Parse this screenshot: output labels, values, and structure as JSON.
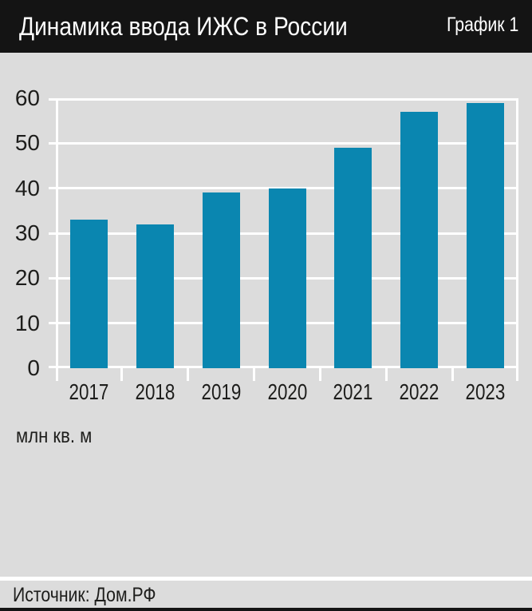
{
  "header": {
    "title": "Динамика ввода ИЖС в России",
    "chart_label": "График 1"
  },
  "chart_data": {
    "type": "bar",
    "title": "Динамика ввода ИЖС в России",
    "categories": [
      "2017",
      "2018",
      "2019",
      "2020",
      "2021",
      "2022",
      "2023"
    ],
    "values": [
      33,
      32,
      39,
      40,
      49,
      57,
      59
    ],
    "xlabel": "",
    "ylabel": "млн кв. м",
    "ylim": [
      0,
      60
    ],
    "yticks": [
      0,
      10,
      20,
      30,
      40,
      50,
      60
    ],
    "grid": true,
    "legend": "none",
    "colors": {
      "bar": "#0a86b0",
      "gridline": "#ffffff",
      "plot_background": "#dcdcdc",
      "header_background": "#141414",
      "text": "#1d1d1b",
      "header_text": "#ffffff"
    }
  },
  "footer": {
    "source_label": "Источник: Дом.РФ"
  }
}
